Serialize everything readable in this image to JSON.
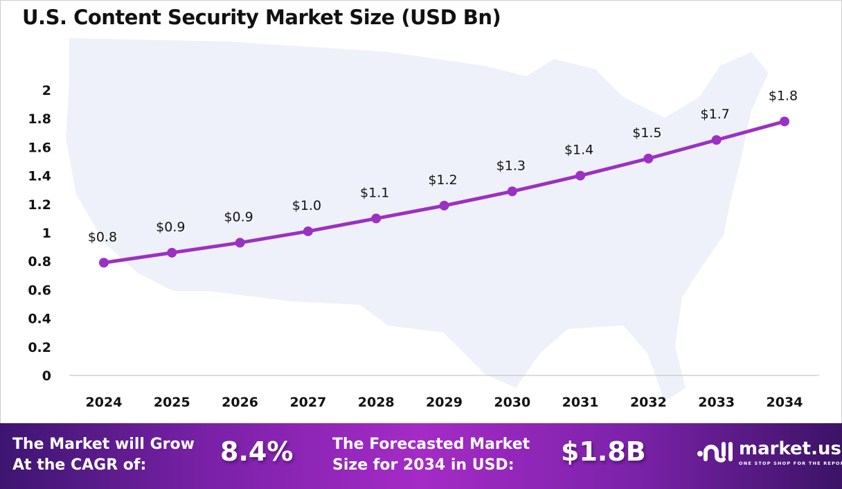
{
  "chart_data": {
    "type": "line",
    "title": "U.S. Content Security Market Size (USD Bn)",
    "categories": [
      "2024",
      "2025",
      "2026",
      "2027",
      "2028",
      "2029",
      "2030",
      "2031",
      "2032",
      "2033",
      "2034"
    ],
    "values": [
      0.79,
      0.86,
      0.93,
      1.01,
      1.1,
      1.19,
      1.29,
      1.4,
      1.52,
      1.65,
      1.78
    ],
    "data_labels": [
      "$0.8",
      "$0.9",
      "$0.9",
      "$1.0",
      "$1.1",
      "$1.2",
      "$1.3",
      "$1.4",
      "$1.5",
      "$1.7",
      "$1.8"
    ],
    "yticks": [
      "0",
      "0.2",
      "0.4",
      "0.6",
      "0.8",
      "1",
      "1.2",
      "1.4",
      "1.6",
      "1.8",
      "2"
    ],
    "ylim": [
      0,
      2
    ],
    "xlabel": "",
    "ylabel": "",
    "grid": false,
    "line_color": "#9b30c4"
  },
  "footer": {
    "cagr_text_1": "The Market will Grow",
    "cagr_text_2": "At the CAGR of:",
    "cagr_value": "8.4%",
    "forecast_text_1": "The Forecasted Market",
    "forecast_text_2": "Size for 2034 in USD:",
    "forecast_value": "$1.8B",
    "logo_name": "market.us",
    "logo_tagline": "ONE STOP SHOP FOR THE REPORTS"
  }
}
